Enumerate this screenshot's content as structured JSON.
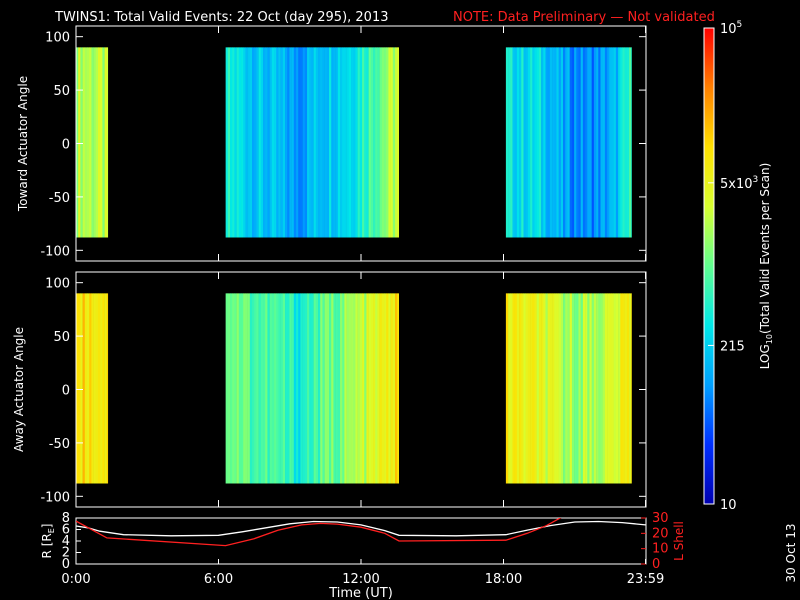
{
  "title": "TWINS1: Total Valid Events: 22 Oct (day 295), 2013",
  "note": "NOTE: Data Preliminary — Not validated",
  "date_stamp": "30 Oct 13",
  "colorbar": {
    "label": "LOG",
    "label_sub": "10",
    "label_rest": "(Total Valid Events per Scan)",
    "ticks": [
      {
        "value": 10,
        "text": "10"
      },
      {
        "value": 215,
        "text": "215"
      },
      {
        "value": 5000,
        "text": "5x10",
        "sup": "3"
      },
      {
        "value": 100000,
        "text": "10",
        "sup": "5"
      }
    ],
    "range": [
      10,
      100000
    ],
    "scale": "log",
    "colors": [
      "#0000b0",
      "#0030ff",
      "#00a0ff",
      "#00e8e8",
      "#60ff90",
      "#d8ff30",
      "#ffe000",
      "#ff8000",
      "#ff0000"
    ]
  },
  "time_axis": {
    "label": "Time (UT)",
    "ticks": [
      {
        "value": 0,
        "text": "0:00"
      },
      {
        "value": 6,
        "text": "6:00"
      },
      {
        "value": 12,
        "text": "12:00"
      },
      {
        "value": 18,
        "text": "18:00"
      },
      {
        "value": 23.98,
        "text": "23:59"
      }
    ],
    "range": [
      0,
      24
    ]
  },
  "chart_data": [
    {
      "type": "heatmap",
      "name": "toward",
      "ylabel": "Toward Actuator Angle",
      "ylim": [
        -110,
        110
      ],
      "yticks": [
        100,
        50,
        0,
        -50,
        -100
      ],
      "angle_range": [
        -88,
        90
      ],
      "x_blocks": [
        [
          0.0,
          1.35
        ],
        [
          6.3,
          13.6
        ],
        [
          18.1,
          23.4
        ]
      ],
      "x_knots": [
        0,
        1.35,
        6.3,
        7.5,
        8.6,
        9.3,
        10.2,
        11.5,
        13.0,
        13.6,
        18.1,
        19.5,
        20.5,
        21.6,
        22.6,
        23.4
      ],
      "log_counts_knots": [
        3.4,
        3.3,
        2.6,
        2.3,
        2.1,
        2.0,
        2.3,
        2.5,
        3.2,
        3.5,
        2.5,
        2.4,
        2.0,
        1.9,
        2.1,
        2.8
      ],
      "angle_profile": "flat"
    },
    {
      "type": "heatmap",
      "name": "away",
      "ylabel": "Away Actuator Angle",
      "ylim": [
        -110,
        110
      ],
      "yticks": [
        100,
        50,
        0,
        -50,
        -100
      ],
      "angle_range": [
        -88,
        90
      ],
      "x_blocks": [
        [
          0.0,
          1.35
        ],
        [
          6.3,
          13.6
        ],
        [
          18.1,
          23.4
        ]
      ],
      "x_knots": [
        0,
        1.35,
        6.3,
        7.5,
        8.6,
        9.3,
        10.2,
        11.5,
        13.0,
        13.6,
        18.1,
        19.5,
        20.5,
        21.6,
        22.6,
        23.4
      ],
      "log_counts_knots": [
        4.0,
        3.9,
        3.2,
        2.9,
        2.8,
        2.6,
        2.9,
        3.2,
        3.7,
        4.0,
        3.8,
        3.6,
        3.3,
        3.3,
        3.5,
        3.9
      ],
      "angle_profile": "flat"
    },
    {
      "type": "line",
      "name": "orbit",
      "ylabel": "R [R",
      "ylabel_sub": "E",
      "ylabel_end": "]",
      "ylim": [
        0,
        8
      ],
      "yticks": [
        0,
        2,
        4,
        6,
        8
      ],
      "y2label": "L Shell",
      "y2lim": [
        0,
        30
      ],
      "y2ticks": [
        0,
        10,
        20,
        30
      ],
      "series": [
        {
          "axis": "left",
          "color": "#ffffff",
          "x": [
            0,
            0.5,
            1.0,
            2.0,
            4.0,
            6.0,
            7.0,
            8.0,
            9.0,
            10.0,
            11.0,
            12.0,
            13.0,
            13.6,
            16.0,
            18.1,
            19.0,
            20.0,
            21.0,
            22.0,
            23.0,
            23.98
          ],
          "y": [
            6.6,
            6.3,
            5.7,
            5.1,
            4.9,
            5.0,
            5.6,
            6.3,
            7.0,
            7.4,
            7.3,
            6.8,
            5.8,
            5.0,
            4.9,
            5.1,
            5.9,
            6.7,
            7.3,
            7.4,
            7.2,
            6.8
          ]
        },
        {
          "axis": "right",
          "color": "#ff2020",
          "x": [
            0,
            1.3,
            6.3,
            7.5,
            8.5,
            9.5,
            10.3,
            11.0,
            12.0,
            13.0,
            13.6,
            18.1,
            19.0,
            19.8,
            20.5,
            21.2
          ],
          "y": [
            28,
            17,
            12,
            16.5,
            22,
            25.5,
            26.5,
            26,
            24,
            20,
            15,
            15.5,
            20,
            25,
            31,
            38
          ]
        }
      ]
    }
  ]
}
